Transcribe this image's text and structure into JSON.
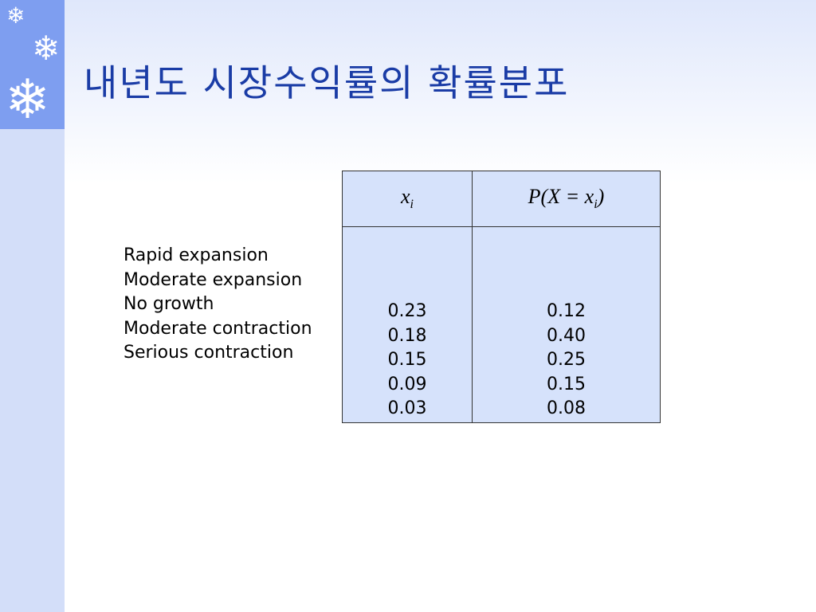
{
  "title": "내년도 시장수익률의 확률분포",
  "table": {
    "headers": {
      "x": "x",
      "x_sub": "i",
      "p_prefix": "P(X = x",
      "p_sub": "i",
      "p_suffix": ")"
    },
    "rows": [
      {
        "label": "Rapid expansion",
        "x": "0.23",
        "p": "0.12"
      },
      {
        "label": "Moderate expansion",
        "x": "0.18",
        "p": "0.40"
      },
      {
        "label": "No growth",
        "x": "0.15",
        "p": "0.25"
      },
      {
        "label": "Moderate contraction",
        "x": "0.09",
        "p": "0.15"
      },
      {
        "label": "Serious contraction",
        "x": "0.03",
        "p": "0.08"
      }
    ]
  },
  "colors": {
    "sidebar": "#7e9ef0",
    "title": "#1a3ca6",
    "table_bg": "#d6e2fb"
  }
}
